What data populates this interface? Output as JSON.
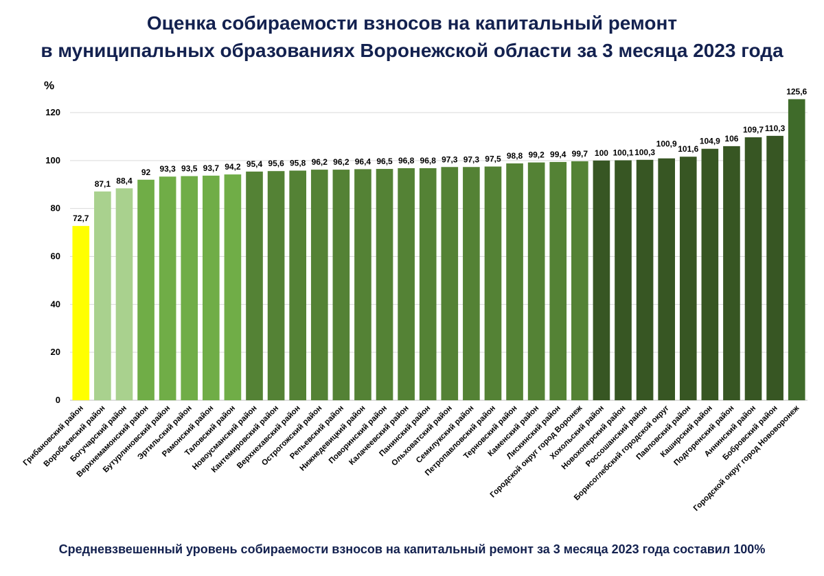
{
  "chart_data": {
    "type": "bar",
    "title_line1": "Оценка собираемости взносов на капитальный ремонт",
    "title_line2": "в муниципальных образованиях Воронежской области за 3 месяца 2023 года",
    "ylabel": "%",
    "ylim": [
      0,
      120
    ],
    "yticks": [
      0,
      20,
      40,
      60,
      80,
      100,
      120
    ],
    "grid": true,
    "footnote": "Средневзвешенный уровень собираемости взносов на капитальный ремонт за 3 месяца 2023 года составил 100%",
    "categories": [
      "Грибановский район",
      "Воробьевский район",
      "Богучарский район",
      "Верхнемамонский район",
      "Бутурлиновский район",
      "Эртильский район",
      "Рамонский район",
      "Таловский район",
      "Новоусманский район",
      "Кантемировский район",
      "Верхнехавский район",
      "Острогожский район",
      "Репьевский район",
      "Нижнедевицкий район",
      "Поворинский район",
      "Калачеевский район",
      "Панинский район",
      "Ольховатский район",
      "Семилукский район",
      "Петропавловский район",
      "Терновский район",
      "Каменский район",
      "Лискинский район",
      "Городской округ город Воронеж",
      "Хохольский район",
      "Новохоперский район",
      "Россошанский район",
      "Борисоглебский городской округ",
      "Павловский район",
      "Каширский район",
      "Подгоренский район",
      "Аннинский район",
      "Бобровский район",
      "Городской округ город Нововоронеж"
    ],
    "values": [
      72.7,
      87.1,
      88.4,
      92,
      93.3,
      93.5,
      93.7,
      94.2,
      95.4,
      95.6,
      95.8,
      96.2,
      96.2,
      96.4,
      96.5,
      96.8,
      96.8,
      97.3,
      97.3,
      97.5,
      98.8,
      99.2,
      99.4,
      99.7,
      100,
      100.1,
      100.3,
      100.9,
      101.6,
      104.9,
      106,
      109.7,
      110.3,
      125.6
    ],
    "value_labels": [
      "72,7",
      "87,1",
      "88,4",
      "92",
      "93,3",
      "93,5",
      "93,7",
      "94,2",
      "95,4",
      "95,6",
      "95,8",
      "96,2",
      "96,2",
      "96,4",
      "96,5",
      "96,8",
      "96,8",
      "97,3",
      "97,3",
      "97,5",
      "98,8",
      "99,2",
      "99,4",
      "99,7",
      "100",
      "100,1",
      "100,3",
      "100,9",
      "101,6",
      "104,9",
      "106",
      "109,7",
      "110,3",
      "125,6"
    ],
    "colors": {
      "below_80": "#ffff00",
      "80_to_90": "#a9d18e",
      "90_to_95": "#70ad47",
      "95_to_100": "#548235",
      "100_to_120": "#375623",
      "above_120": "#3f6b2a"
    }
  }
}
